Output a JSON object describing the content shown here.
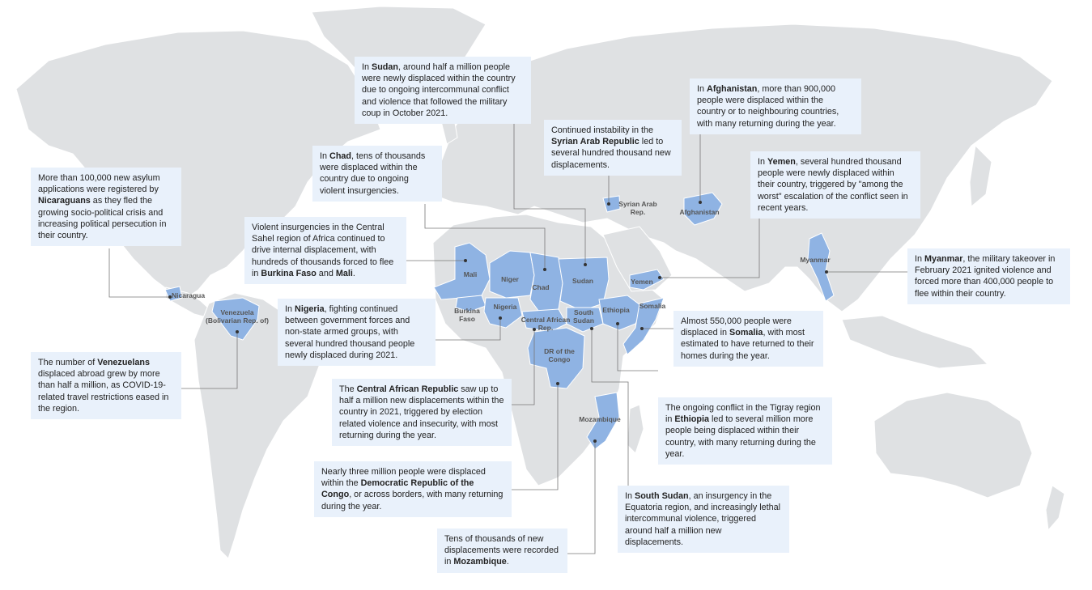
{
  "colors": {
    "land": "#dfe1e3",
    "highlight": "#8fb3e3",
    "callout_bg": "#e9f1fb"
  },
  "country_labels": {
    "nicaragua": "Nicaragua",
    "venezuela": "Venezuela\n(Bolivarian Rep. of)",
    "mali": "Mali",
    "niger": "Niger",
    "chad": "Chad",
    "sudan": "Sudan",
    "burkina": "Burkina\nFaso",
    "nigeria": "Nigeria",
    "car": "Central African\nRep.",
    "south_sudan": "South\nSudan",
    "ethiopia": "Ethiopia",
    "somalia": "Somalia",
    "drc": "DR of the\nCongo",
    "mozambique": "Mozambique",
    "syria": "Syrian Arab\nRep.",
    "afghanistan": "Afghanistan",
    "yemen": "Yemen",
    "myanmar": "Myanmar"
  },
  "callouts": {
    "nicaragua": {
      "a": "More than 100,000 new asylum applications were registered by ",
      "b": "Nicaraguans",
      "c": " as they fled the growing socio-political crisis and increasing political persecution in their country."
    },
    "venezuela": {
      "a": "The number of ",
      "b": "Venezuelans",
      "c": " displaced abroad grew by more than half a million, as COVID-19-related travel restrictions eased in the region."
    },
    "sahel": {
      "a": "Violent insurgencies in the Central Sahel region of Africa continued to drive internal displacement, with hundreds of thousands forced to flee in ",
      "b": "Burkina Faso",
      "mid": " and ",
      "b2": "Mali",
      "c": "."
    },
    "chad": {
      "a": "In ",
      "b": "Chad",
      "c": ", tens of thousands were displaced within the country due to ongoing violent insurgencies."
    },
    "sudan": {
      "a": "In ",
      "b": "Sudan",
      "c": ", around half a million people were newly displaced within the country due to ongoing intercommunal conflict and violence that followed the military coup in October 2021."
    },
    "nigeria": {
      "a": "In ",
      "b": "Nigeria",
      "c": ", fighting continued between government forces and non-state armed groups, with several hundred thousand people newly displaced during 2021."
    },
    "car": {
      "a": "The ",
      "b": "Central African Republic",
      "c": " saw up to half a million new displacements within the country in 2021, triggered by election related violence and insecurity, with most returning during the year."
    },
    "drc": {
      "a": "Nearly three million people were displaced within the ",
      "b": "Democratic Republic of the Congo",
      "c": ", or across borders, with many returning during the year."
    },
    "mozambique": {
      "a": "Tens of thousands of new displacements were recorded in ",
      "b": "Mozambique",
      "c": "."
    },
    "syria": {
      "a": "Continued instability in the ",
      "b": "Syrian Arab Republic",
      "c": " led to several hundred thousand new displacements."
    },
    "afghanistan": {
      "a": "In ",
      "b": "Afghanistan",
      "c": ", more than 900,000 people were displaced within the country or to neighbouring countries, with many returning during the year."
    },
    "yemen": {
      "a": "In ",
      "b": "Yemen",
      "c": ", several hundred thousand people were newly displaced within their country, triggered by \"among the worst\" escalation of the conflict seen in recent years."
    },
    "myanmar": {
      "a": "In ",
      "b": "Myanmar",
      "c": ", the military takeover in February 2021 ignited violence and forced more than 400,000 people to flee within their country."
    },
    "somalia": {
      "a": "Almost 550,000 people were displaced in ",
      "b": "Somalia",
      "c": ", with most estimated to have returned to their homes during the year."
    },
    "ethiopia": {
      "a": "The ongoing conflict in the Tigray region in ",
      "b": "Ethiopia",
      "c": " led to several million more people being displaced within their country, with many returning during the year."
    },
    "south_sudan": {
      "a": "In ",
      "b": "South Sudan",
      "c": ", an insurgency in the Equatoria region, and increasingly lethal intercommunal violence, triggered around half a million new displacements."
    }
  }
}
